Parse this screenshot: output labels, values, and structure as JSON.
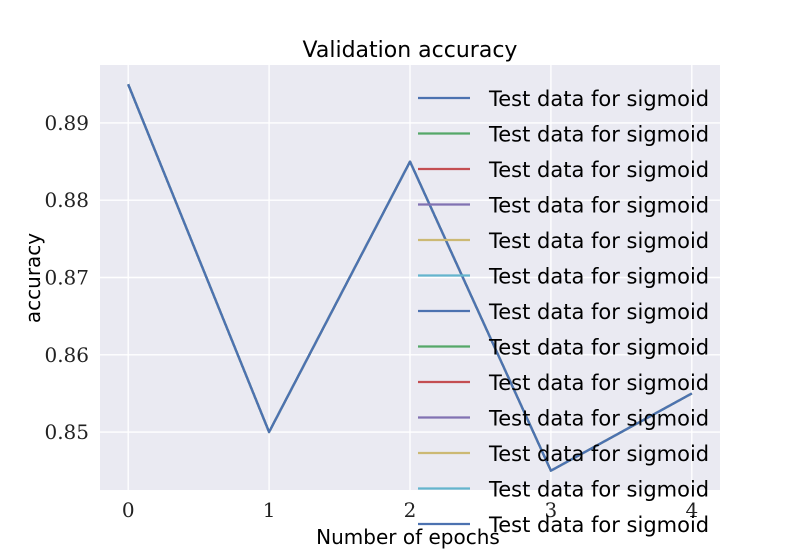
{
  "chart_data": {
    "type": "line",
    "title": "Validation accuracy",
    "xlabel": "Number of epochs",
    "ylabel": "accuracy",
    "x": [
      0,
      1,
      2,
      3,
      4
    ],
    "xticks": [
      "0",
      "1",
      "2",
      "3",
      "4"
    ],
    "yticks": [
      "0.85",
      "0.86",
      "0.87",
      "0.88",
      "0.89"
    ],
    "xlim": [
      -0.2,
      4.2
    ],
    "ylim": [
      0.8425,
      0.8975
    ],
    "grid": true,
    "legend_position": "top-right",
    "series": [
      {
        "name": "Test data for sigmoid",
        "color": "#4c72b0",
        "values": [
          0.895,
          0.85,
          0.885,
          0.845,
          0.855
        ]
      },
      {
        "name": "Test data for sigmoid",
        "color": "#55a868",
        "values": [
          0.895,
          0.85,
          0.885,
          0.845,
          0.855
        ]
      },
      {
        "name": "Test data for sigmoid",
        "color": "#c44e52",
        "values": [
          0.895,
          0.85,
          0.885,
          0.845,
          0.855
        ]
      },
      {
        "name": "Test data for sigmoid",
        "color": "#8172b2",
        "values": [
          0.895,
          0.85,
          0.885,
          0.845,
          0.855
        ]
      },
      {
        "name": "Test data for sigmoid",
        "color": "#ccb974",
        "values": [
          0.895,
          0.85,
          0.885,
          0.845,
          0.855
        ]
      },
      {
        "name": "Test data for sigmoid",
        "color": "#64b5cd",
        "values": [
          0.895,
          0.85,
          0.885,
          0.845,
          0.855
        ]
      },
      {
        "name": "Test data for sigmoid",
        "color": "#4c72b0",
        "values": [
          0.895,
          0.85,
          0.885,
          0.845,
          0.855
        ]
      },
      {
        "name": "Test data for sigmoid",
        "color": "#55a868",
        "values": [
          0.895,
          0.85,
          0.885,
          0.845,
          0.855
        ]
      },
      {
        "name": "Test data for sigmoid",
        "color": "#c44e52",
        "values": [
          0.895,
          0.85,
          0.885,
          0.845,
          0.855
        ]
      },
      {
        "name": "Test data for sigmoid",
        "color": "#8172b2",
        "values": [
          0.895,
          0.85,
          0.885,
          0.845,
          0.855
        ]
      },
      {
        "name": "Test data for sigmoid",
        "color": "#ccb974",
        "values": [
          0.895,
          0.85,
          0.885,
          0.845,
          0.855
        ]
      },
      {
        "name": "Test data for sigmoid",
        "color": "#64b5cd",
        "values": [
          0.895,
          0.85,
          0.885,
          0.845,
          0.855
        ]
      },
      {
        "name": "Test data for sigmoid",
        "color": "#4c72b0",
        "values": [
          0.895,
          0.85,
          0.885,
          0.845,
          0.855
        ]
      }
    ],
    "plot_background": "#eaeaf2",
    "grid_color": "#ffffff"
  }
}
